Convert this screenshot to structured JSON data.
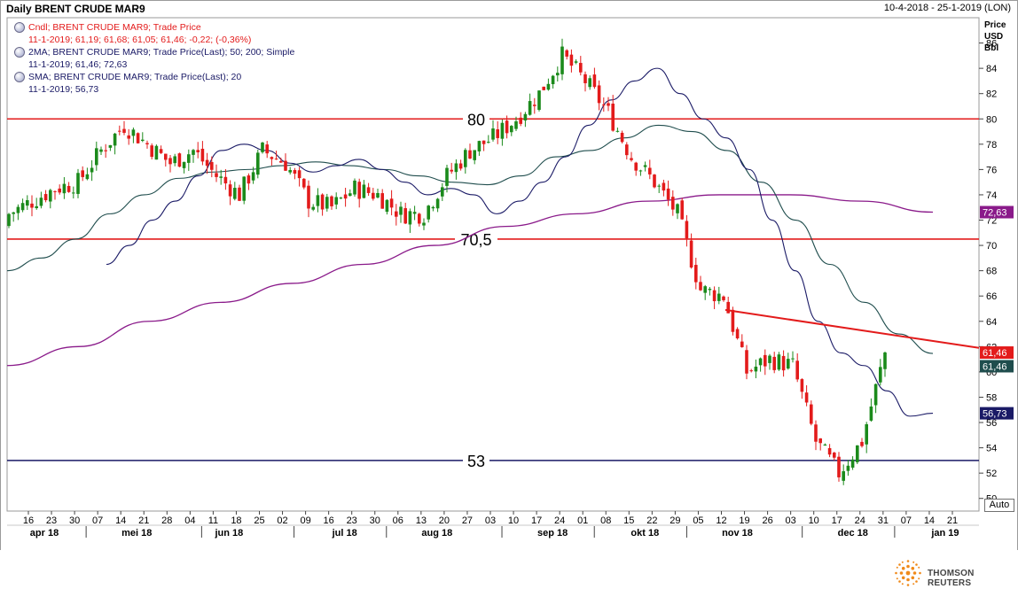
{
  "header": {
    "title": "Daily BRENT CRUDE MAR9",
    "range": "10-4-2018 - 25-1-2019 (LON)"
  },
  "legend": [
    {
      "label": "Cndl; BRENT CRUDE MAR9; Trade Price",
      "values": "11-1-2019; 61,19; 61,68; 61,05; 61,46; -0,22; (-0,36%)",
      "color": "#e31b1b"
    },
    {
      "label": "2MA; BRENT CRUDE MAR9; Trade Price(Last);  50; 200; Simple",
      "values": "11-1-2019; 61,46; 72,63",
      "color": "#1a1a66"
    },
    {
      "label": "SMA; BRENT CRUDE MAR9; Trade Price(Last);  20",
      "values": "11-1-2019; 56,73",
      "color": "#1a1a66"
    }
  ],
  "axis_header": [
    "Price",
    "USD",
    "Bbl"
  ],
  "auto_label": "Auto",
  "footer": {
    "brand": "THOMSON REUTERS"
  },
  "colors": {
    "up": "#1b8a1b",
    "down": "#e31b1b",
    "sma20": "#1a1a66",
    "ma50": "#1f4d4d",
    "ma200": "#8a1a8a",
    "level_red": "#e31b1b",
    "level_navy": "#1a1a66"
  },
  "chart_data": {
    "type": "candlestick",
    "title": "Daily BRENT CRUDE MAR9",
    "ylabel": "Price USD Bbl",
    "ylim": [
      49,
      88
    ],
    "y_ticks": [
      50,
      52,
      54,
      56,
      58,
      60,
      62,
      64,
      66,
      68,
      70,
      72,
      74,
      76,
      78,
      80,
      82,
      84,
      86
    ],
    "x_tick_labels": [
      "16",
      "23",
      "30",
      "07",
      "14",
      "21",
      "28",
      "04",
      "11",
      "18",
      "25",
      "02",
      "09",
      "16",
      "23",
      "30",
      "06",
      "13",
      "20",
      "27",
      "03",
      "10",
      "17",
      "24",
      "01",
      "08",
      "15",
      "22",
      "29",
      "05",
      "12",
      "19",
      "26",
      "03",
      "10",
      "17",
      "24",
      "31",
      "07",
      "14",
      "21"
    ],
    "month_labels": [
      {
        "label": "apr 18",
        "tick": 0
      },
      {
        "label": "mei 18",
        "tick": 4
      },
      {
        "label": "jun 18",
        "tick": 8
      },
      {
        "label": "jul 18",
        "tick": 13
      },
      {
        "label": "aug 18",
        "tick": 17
      },
      {
        "label": "sep 18",
        "tick": 22
      },
      {
        "label": "okt 18",
        "tick": 26
      },
      {
        "label": "nov 18",
        "tick": 30
      },
      {
        "label": "dec 18",
        "tick": 35
      },
      {
        "label": "jan 19",
        "tick": 39
      }
    ],
    "month_separator_after_tick": [
      2,
      7,
      11,
      15,
      20,
      24,
      28,
      33,
      37
    ],
    "approx_close_by_week": [
      72.5,
      73.5,
      74.5,
      75,
      77.5,
      79.5,
      78,
      76.5,
      77.5,
      75.5,
      74,
      77.5,
      76.5,
      73.5,
      73,
      74.5,
      74,
      72.5,
      72.5,
      75.5,
      77.5,
      78.5,
      80,
      82,
      85,
      83,
      80.5,
      77,
      75,
      72.5,
      66.5,
      66,
      60,
      61,
      60.5,
      54.5,
      52,
      54.5,
      61.5
    ],
    "series": [
      {
        "name": "SMA 20",
        "last": 56.73,
        "values": [
          68.5,
          70,
          72,
          73.5,
          75.5,
          77.5,
          78,
          77.5,
          76.5,
          75.8,
          76.3,
          76.8,
          76,
          75,
          74,
          74.5,
          74,
          72.5,
          73.5,
          75,
          77,
          79.5,
          81.5,
          83,
          84,
          82,
          80,
          78.5,
          76,
          72,
          68,
          64,
          61.5,
          60.5,
          58.5,
          56.5,
          56.73
        ]
      },
      {
        "name": "MA 50",
        "last": 61.46,
        "values": [
          68,
          69,
          70.5,
          72.5,
          74,
          75.3,
          75.8,
          76,
          76.3,
          76.6,
          76.3,
          76,
          75.5,
          75,
          74.8,
          75.5,
          77,
          77.5,
          78.5,
          79.5,
          79,
          77.5,
          75,
          72,
          68.5,
          65.5,
          63,
          61.46
        ]
      },
      {
        "name": "MA 200",
        "last": 72.63,
        "values": [
          60.5,
          62,
          64,
          65.5,
          67,
          68.5,
          70,
          71.5,
          72.5,
          73.5,
          74,
          74,
          73.5,
          72.63
        ]
      }
    ],
    "levels": [
      {
        "value": 80,
        "label": "80"
      },
      {
        "value": 70.5,
        "label": "70,5"
      },
      {
        "value": 53,
        "label": "53"
      }
    ],
    "trendline": {
      "from": 64.9,
      "to": 61.9
    },
    "last_values": {
      "last_price": "61,46",
      "ma50": "61,46",
      "ma200": "72,63",
      "sma20": "56,73"
    }
  }
}
